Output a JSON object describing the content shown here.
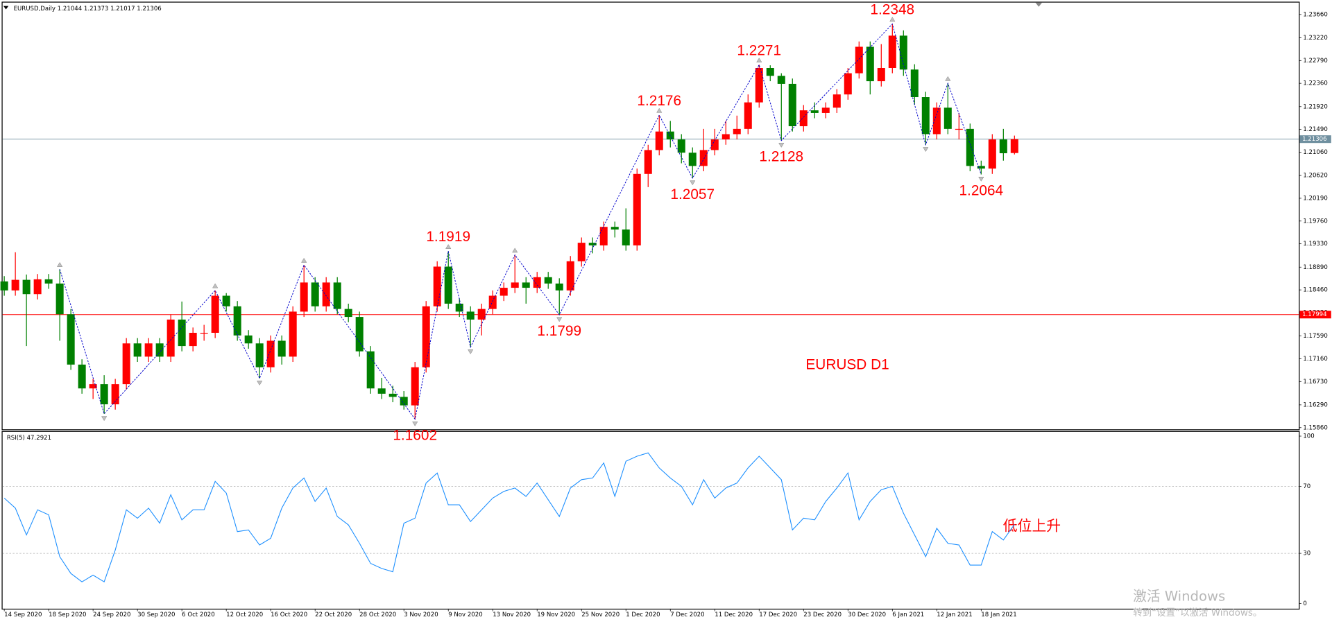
{
  "chart_data": [
    {
      "type": "candlestick",
      "title": "EURUSD,Daily  1.21044 1.21373 1.21017 1.21306",
      "annotation": "EURUSD D1",
      "categories": [
        "14 Sep 2020",
        null,
        null,
        null,
        "18 Sep 2020",
        null,
        null,
        null,
        "24 Sep 2020",
        null,
        null,
        null,
        "30 Sep 2020",
        null,
        null,
        null,
        "6 Oct 2020",
        null,
        null,
        null,
        "12 Oct 2020",
        null,
        null,
        null,
        "16 Oct 2020",
        null,
        null,
        null,
        "22 Oct 2020",
        null,
        null,
        null,
        "28 Oct 2020",
        null,
        null,
        null,
        "3 Nov 2020",
        null,
        null,
        null,
        "9 Nov 2020",
        null,
        null,
        null,
        "13 Nov 2020",
        null,
        null,
        null,
        "19 Nov 2020",
        null,
        null,
        null,
        "25 Nov 2020",
        null,
        null,
        null,
        "1 Dec 2020",
        null,
        null,
        null,
        "7 Dec 2020",
        null,
        null,
        null,
        "11 Dec 2020",
        null,
        null,
        null,
        "17 Dec 2020",
        null,
        null,
        null,
        "23 Dec 2020",
        null,
        null,
        null,
        "30 Dec 2020",
        null,
        null,
        null,
        "6 Jan 2021",
        null,
        null,
        null,
        "12 Jan 2021",
        null,
        null,
        null,
        "18 Jan 2021",
        null,
        null,
        null
      ],
      "open": [
        1.1862,
        1.1845,
        1.1865,
        1.1838,
        1.1866,
        1.1858,
        1.18,
        1.1705,
        1.166,
        1.1668,
        1.163,
        1.1668,
        1.1745,
        1.172,
        1.1745,
        1.172,
        1.179,
        1.174,
        1.1765,
        1.1765,
        1.1835,
        1.1815,
        1.176,
        1.1745,
        1.17,
        1.175,
        1.172,
        1.1805,
        1.186,
        1.1815,
        1.186,
        1.181,
        1.1795,
        1.173,
        1.166,
        1.165,
        1.1644,
        1.1628,
        1.17,
        1.1815,
        1.189,
        1.182,
        1.1805,
        1.179,
        1.181,
        1.1835,
        1.185,
        1.186,
        1.185,
        1.187,
        1.1858,
        1.1845,
        1.19,
        1.1935,
        1.193,
        1.1965,
        1.196,
        1.193,
        1.2065,
        1.211,
        1.2145,
        1.213,
        1.2105,
        1.208,
        1.211,
        1.213,
        1.214,
        1.215,
        1.22,
        1.2265,
        1.225,
        1.2235,
        1.2155,
        1.2185,
        1.218,
        1.219,
        1.2215,
        1.2255,
        1.2305,
        1.224,
        1.2265,
        1.2326,
        1.2262,
        1.221,
        1.214,
        1.219,
        1.215,
        1.215,
        1.208,
        1.2075,
        1.213,
        1.21044
      ],
      "high": [
        1.1872,
        1.1917,
        1.1875,
        1.1876,
        1.1876,
        1.1885,
        1.181,
        1.1715,
        1.1678,
        1.1685,
        1.1678,
        1.1755,
        1.1755,
        1.1755,
        1.1755,
        1.18,
        1.1824,
        1.1775,
        1.178,
        1.1845,
        1.184,
        1.1825,
        1.177,
        1.1755,
        1.176,
        1.176,
        1.1815,
        1.1893,
        1.187,
        1.187,
        1.187,
        1.182,
        1.1805,
        1.174,
        1.168,
        1.1665,
        1.1655,
        1.171,
        1.1825,
        1.19,
        1.1919,
        1.183,
        1.1815,
        1.182,
        1.1845,
        1.186,
        1.1912,
        1.187,
        1.188,
        1.188,
        1.1868,
        1.191,
        1.1945,
        1.1945,
        1.1975,
        1.1975,
        1.2,
        1.2075,
        1.212,
        1.2176,
        1.2165,
        1.214,
        1.2115,
        1.215,
        1.215,
        1.2165,
        1.2175,
        1.2215,
        1.2271,
        1.227,
        1.2255,
        1.2245,
        1.2195,
        1.22,
        1.22,
        1.2225,
        1.2265,
        1.2315,
        1.2315,
        1.231,
        1.2348,
        1.2336,
        1.2272,
        1.222,
        1.22,
        1.2236,
        1.218,
        1.216,
        1.209,
        1.214,
        1.215,
        1.21373
      ],
      "low": [
        1.1835,
        1.1835,
        1.174,
        1.1828,
        1.1848,
        1.175,
        1.1695,
        1.165,
        1.164,
        1.1612,
        1.162,
        1.1658,
        1.171,
        1.171,
        1.171,
        1.171,
        1.173,
        1.173,
        1.175,
        1.1755,
        1.1805,
        1.175,
        1.1735,
        1.1679,
        1.169,
        1.1705,
        1.171,
        1.1795,
        1.1805,
        1.1805,
        1.18,
        1.1785,
        1.172,
        1.165,
        1.164,
        1.1634,
        1.162,
        1.1602,
        1.169,
        1.1805,
        1.181,
        1.1795,
        1.1738,
        1.176,
        1.18,
        1.1825,
        1.184,
        1.182,
        1.184,
        1.1848,
        1.1799,
        1.1835,
        1.189,
        1.1915,
        1.192,
        1.1945,
        1.192,
        1.192,
        1.204,
        1.21,
        1.2115,
        1.2085,
        1.2057,
        1.207,
        1.21,
        1.212,
        1.213,
        1.214,
        1.219,
        1.224,
        1.2128,
        1.2145,
        1.2145,
        1.217,
        1.217,
        1.218,
        1.2205,
        1.2245,
        1.2215,
        1.223,
        1.2255,
        1.225,
        1.2195,
        1.212,
        1.213,
        1.214,
        1.213,
        1.207,
        1.2064,
        1.2065,
        1.209,
        1.21017
      ],
      "close": [
        1.1845,
        1.1865,
        1.1838,
        1.1866,
        1.1858,
        1.18,
        1.1705,
        1.166,
        1.1668,
        1.163,
        1.1668,
        1.1745,
        1.172,
        1.1745,
        1.172,
        1.179,
        1.174,
        1.1765,
        1.1765,
        1.1835,
        1.1815,
        1.176,
        1.1745,
        1.17,
        1.175,
        1.172,
        1.1805,
        1.186,
        1.1815,
        1.186,
        1.181,
        1.1795,
        1.173,
        1.166,
        1.165,
        1.1644,
        1.1628,
        1.17,
        1.1815,
        1.189,
        1.182,
        1.1805,
        1.179,
        1.181,
        1.1835,
        1.185,
        1.186,
        1.185,
        1.187,
        1.1858,
        1.1845,
        1.19,
        1.1935,
        1.193,
        1.1965,
        1.196,
        1.193,
        1.2065,
        1.211,
        1.2145,
        1.213,
        1.2105,
        1.208,
        1.211,
        1.213,
        1.214,
        1.215,
        1.22,
        1.2265,
        1.225,
        1.2235,
        1.2155,
        1.2185,
        1.218,
        1.219,
        1.2215,
        1.2255,
        1.2305,
        1.224,
        1.2265,
        1.2326,
        1.2262,
        1.221,
        1.214,
        1.219,
        1.215,
        1.215,
        1.208,
        1.2075,
        1.213,
        1.2104,
        1.21306
      ],
      "up_color": "#ff0000",
      "down_color": "#008000",
      "ylim": [
        1.1586,
        1.2366
      ],
      "yticks": [
        {
          "value": 1.1586,
          "label": "1.15860"
        },
        {
          "value": 1.1629,
          "label": "1.16290"
        },
        {
          "value": 1.1673,
          "label": "1.16730"
        },
        {
          "value": 1.1716,
          "label": "1.17160"
        },
        {
          "value": 1.1759,
          "label": "1.17590"
        },
        {
          "value": 1.1803,
          "label": "1.18030"
        },
        {
          "value": 1.1846,
          "label": "1.18460"
        },
        {
          "value": 1.1889,
          "label": "1.18890"
        },
        {
          "value": 1.1933,
          "label": "1.19330"
        },
        {
          "value": 1.1976,
          "label": "1.19760"
        },
        {
          "value": 1.2019,
          "label": "1.20190"
        },
        {
          "value": 1.2062,
          "label": "1.20620"
        },
        {
          "value": 1.2106,
          "label": "1.21060"
        },
        {
          "value": 1.2149,
          "label": "1.21490"
        },
        {
          "value": 1.2192,
          "label": "1.21920"
        },
        {
          "value": 1.2236,
          "label": "1.22360"
        },
        {
          "value": 1.2279,
          "label": "1.22790"
        },
        {
          "value": 1.2322,
          "label": "1.23220"
        },
        {
          "value": 1.2366,
          "label": "1.23660"
        }
      ],
      "hlines": [
        {
          "value": 1.21306,
          "label": "1.21306",
          "color": "#6f8f9f"
        },
        {
          "value": 1.17994,
          "label": "1.17994",
          "color": "#ff0000"
        }
      ],
      "zigzag": {
        "color": "#0000cc",
        "label_color": "#ff0000",
        "points": [
          {
            "x": 5,
            "value": 1.1885
          },
          {
            "x": 9,
            "value": 1.1612
          },
          {
            "x": 19,
            "value": 1.1845
          },
          {
            "x": 23,
            "value": 1.1679
          },
          {
            "x": 27,
            "value": 1.1893
          },
          {
            "x": 37,
            "value": 1.1602,
            "label": "1.1602"
          },
          {
            "x": 40,
            "value": 1.1919,
            "label": "1.1919"
          },
          {
            "x": 42,
            "value": 1.1738
          },
          {
            "x": 46,
            "value": 1.1912
          },
          {
            "x": 50,
            "value": 1.1799,
            "label": "1.1799"
          },
          {
            "x": 59,
            "value": 1.2176,
            "label": "1.2176"
          },
          {
            "x": 62,
            "value": 1.2057,
            "label": "1.2057"
          },
          {
            "x": 68,
            "value": 1.2271,
            "label": "1.2271"
          },
          {
            "x": 70,
            "value": 1.2128,
            "label": "1.2128"
          },
          {
            "x": 80,
            "value": 1.2348,
            "label": "1.2348"
          },
          {
            "x": 83,
            "value": 1.212
          },
          {
            "x": 85,
            "value": 1.2236
          },
          {
            "x": 88,
            "value": 1.2064,
            "label": "1.2064"
          }
        ]
      }
    },
    {
      "type": "line",
      "title": "RSI(5) 47.2921",
      "annotation": "低位上升",
      "color": "#1e90ff",
      "values": [
        63,
        57,
        41,
        56,
        53,
        28,
        18,
        13,
        17,
        13,
        32,
        56,
        51,
        57,
        48,
        65,
        50,
        56,
        56,
        73,
        66,
        43,
        44,
        35,
        39,
        57,
        69,
        75,
        61,
        69,
        52,
        47,
        36,
        24,
        21,
        19,
        48,
        51,
        72,
        78,
        59,
        59,
        49,
        56,
        63,
        67,
        69,
        64,
        72,
        62,
        52,
        69,
        74,
        75,
        84,
        64,
        85,
        88,
        90,
        81,
        75,
        70,
        59,
        74,
        63,
        69,
        72,
        81,
        88,
        81,
        74,
        44,
        51,
        50,
        61,
        69,
        78,
        50,
        61,
        68,
        70,
        54,
        41,
        28,
        45,
        36,
        35,
        23,
        23,
        43,
        38,
        47.2921
      ],
      "ylim": [
        0,
        100
      ],
      "yticks": [
        0,
        30,
        70,
        100
      ],
      "grid": true
    }
  ],
  "watermark": {
    "title": "激活 Windows",
    "subtitle": "转到“设置”以激活 Windows。"
  }
}
